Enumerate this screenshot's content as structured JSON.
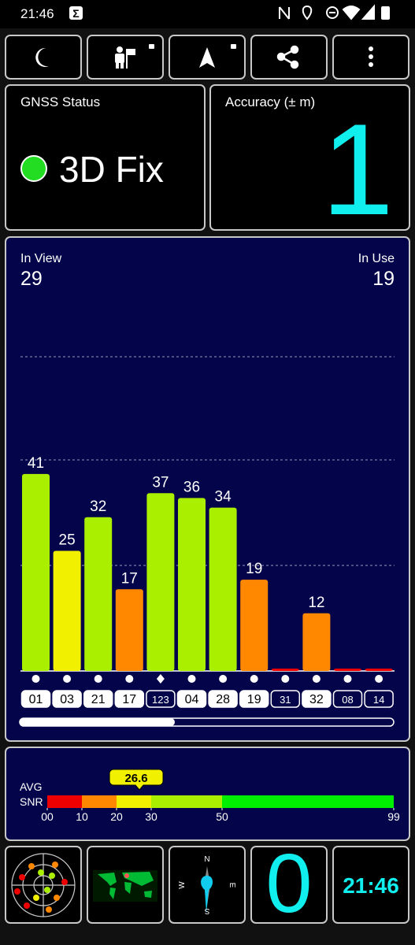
{
  "status_bar": {
    "time": "21:46"
  },
  "gnss_status": {
    "title": "GNSS Status",
    "fix": "3D Fix",
    "fix_color": "#22dd22"
  },
  "accuracy": {
    "title": "Accuracy (± m)",
    "value": 1
  },
  "satellites": {
    "in_view_label": "In View",
    "in_view": 29,
    "in_use_label": "In Use",
    "in_use": 19,
    "chart": {
      "type": "bar",
      "categories": [
        "01",
        "03",
        "21",
        "17",
        "123",
        "04",
        "28",
        "19",
        "31",
        "32",
        "08",
        "14"
      ],
      "values": [
        41,
        25,
        32,
        17,
        37,
        36,
        34,
        19,
        0.5,
        12,
        0.5,
        0.5
      ],
      "value_labels": [
        "41",
        "25",
        "32",
        "17",
        "37",
        "36",
        "34",
        "19",
        null,
        "12",
        null,
        null
      ],
      "colors": [
        "#aaee00",
        "#f0f000",
        "#aaee00",
        "#ff8800",
        "#aaee00",
        "#aaee00",
        "#aaee00",
        "#ff8800",
        "#ee0000",
        "#ff8800",
        "#ee0000",
        "#ee0000"
      ],
      "markers": [
        "circle",
        "circle",
        "circle",
        "circle",
        "diamond",
        "circle",
        "circle",
        "circle",
        "circle",
        "circle",
        "circle",
        "circle"
      ],
      "used": [
        true,
        true,
        true,
        true,
        false,
        true,
        true,
        true,
        false,
        true,
        false,
        false
      ]
    }
  },
  "snr": {
    "label_avg": "AVG",
    "label_snr": "SNR",
    "average": 26.6,
    "ticks": [
      {
        "value": 0,
        "label": "00"
      },
      10,
      20,
      30,
      50,
      99
    ],
    "colors": [
      "#ee0000",
      "#ff8800",
      "#f0f000",
      "#aaee00",
      "#00ee00"
    ]
  },
  "tiles": {
    "compass": {
      "north": "N",
      "west": "W",
      "east": "E",
      "south": "S"
    },
    "speed": 0,
    "clock": "21:46"
  }
}
